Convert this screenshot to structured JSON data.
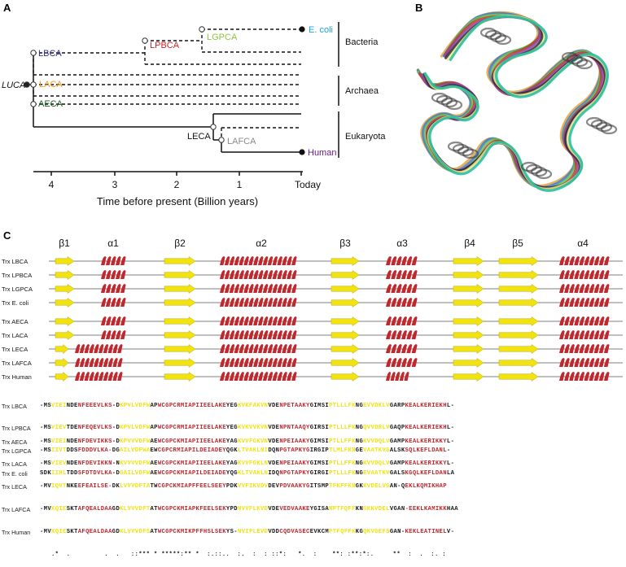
{
  "panels": {
    "a": "A",
    "b": "B",
    "c": "C"
  },
  "tree": {
    "nodes": {
      "luca": "LUCA",
      "lbca": "LBCA",
      "lpbca": "LPBCA",
      "lgpca": "LGPCA",
      "laca": "LACA",
      "aeca": "AECA",
      "leca": "LECA",
      "lafca": "LAFCA"
    },
    "leaves": {
      "ecoli": "E. coli",
      "human": "Human"
    },
    "groups": {
      "bacteria": "Bacteria",
      "archaea": "Archaea",
      "eukaryota": "Eukaryota"
    },
    "axis": {
      "ticks": [
        "4",
        "3",
        "2",
        "1",
        "Today"
      ],
      "title": "Time before present (Billion years)"
    },
    "colors": {
      "lbca": "#2e3192",
      "lpbca": "#d2232a",
      "lgpca": "#8dc63f",
      "laca": "#f7941d",
      "aeca": "#1a5e20",
      "lafca": "#8a8a8a",
      "ecoli": "#1fa3dc",
      "human": "#6a1b8a"
    }
  },
  "structure": {
    "description_colors": [
      "#e6a23c",
      "#3a7bd5",
      "#6cbf4a",
      "#c0392b",
      "#8e44ad",
      "#2c2c2c",
      "#f0e68c",
      "#1abc9c"
    ]
  },
  "secondary": {
    "labels": [
      "β1",
      "α1",
      "β2",
      "α2",
      "β3",
      "α3",
      "β4",
      "β5",
      "α4"
    ],
    "rows_top": [
      "Trx LBCA",
      "Trx LPBCA",
      "Trx LGPCA",
      "Trx E. coli"
    ],
    "rows_bottom": [
      "Trx AECA",
      "Trx LACA",
      "Trx LECA",
      "Trx LAFCA",
      "Trx Human"
    ],
    "colors": {
      "strand": "#f2e20f",
      "helix": "#c0282d"
    }
  },
  "alignment": {
    "top": [
      {
        "name": "Trx LBCA",
        "seq": "-MSVIEINDENFEEEVLKS-DKPVLVDFWAPWCGPCRMIAPIIEELAKEYEGKVKFAKVNVDENPETAAKYGIMSIPTLLLFKNGEVVDKLVGARPKEALKERIEKHL-"
      },
      {
        "name": "Trx LPBCA",
        "seq": "-MSVIEVTDENFEQEVLKS-DKPVLVDFWAPWCGPCRMIAPIIEELAKEYEGKVKVVKVNVDENPNTAAQYGIRSIPTLLLFKNGQVVDRLVGAQPKEALKERIEKHL-"
      },
      {
        "name": "Trx LGPCA",
        "seq": "-MSIIVTDDSFDDDVLKA-DGAILVDFWAEWCGPCRMIAPILDEIADEYQGKLTVAKLNIDQNPGTAPKYGIRGIPTLMLFKNGEVAATKVGALSKSQLKEFLDANL-"
      },
      {
        "name": "Trx E. coli",
        "seq": "SDKIIHLTDDSFDTDVLKA-DGAILVDFWAEWCGPCKMIAPILDEIADEYQGKLTVAKLNIDQNPGTAPKYGIRGIPTLLLFKNGEVAATKVGALSKGQLKEFLDANLA"
      }
    ],
    "bottom": [
      {
        "name": "Trx AECA",
        "seq": "-MSVIEINDENFDEVIKKS-DKPVVVDFWAEWCGPCKMIAPIIEELAKEYAGKVVFGKVNVDENPEIAAKYGIMSIPTLLFFKNGKVVDQLVGAMPKEALKERIKKYL-"
      },
      {
        "name": "Trx LACA",
        "seq": "-MSVIEVNDENFDEVIKKN-NKVVVVDFWAEWCGPCKMIAPIIEELAKEYAGKVVFGKLNVDENPEIAAKYGIMSIPTLLFFKNGKVVDQLVGAMPKEALKERIKKYL-"
      },
      {
        "name": "Trx LECA",
        "seq": "-MVIQVTNKEEFEAILSE-DKLVVVDFTATWCGPCKMIAPFFEELSEEYPDKVVFIKVDVDEVPDVAAKYGITSMPTFKFFKNGKKVDELVGAN-QEKLKQMIKHAP"
      },
      {
        "name": "Trx LAFCA",
        "seq": "-MVKQIESKTAFQEALDAAGDKLVVVDFTATWCGPCKMIAPKFEELSEKYPDNVVFLKVDVDEVEDVAAKEYGISAMPTFQFFKNGKKVDELVGAN-EEKLKAMIKKHAA"
      },
      {
        "name": "Trx Human",
        "seq": "-MVKQIESKTAFQEALDAAGDKLVVVDFSATWCGPCKMIKPFFHSLSEKYS-NVIFLEVDVDDCQDVASECEVKCMPTFQFFKKGQKVGEFSGAN-KEKLEATINELV-"
      }
    ],
    "consensus": "   .*  .         .  .   ::*** * *****:** *  :.::..  :.  :  : ::*:   *.  :    **: :**:*:.     **  :  .  :. :"
  }
}
